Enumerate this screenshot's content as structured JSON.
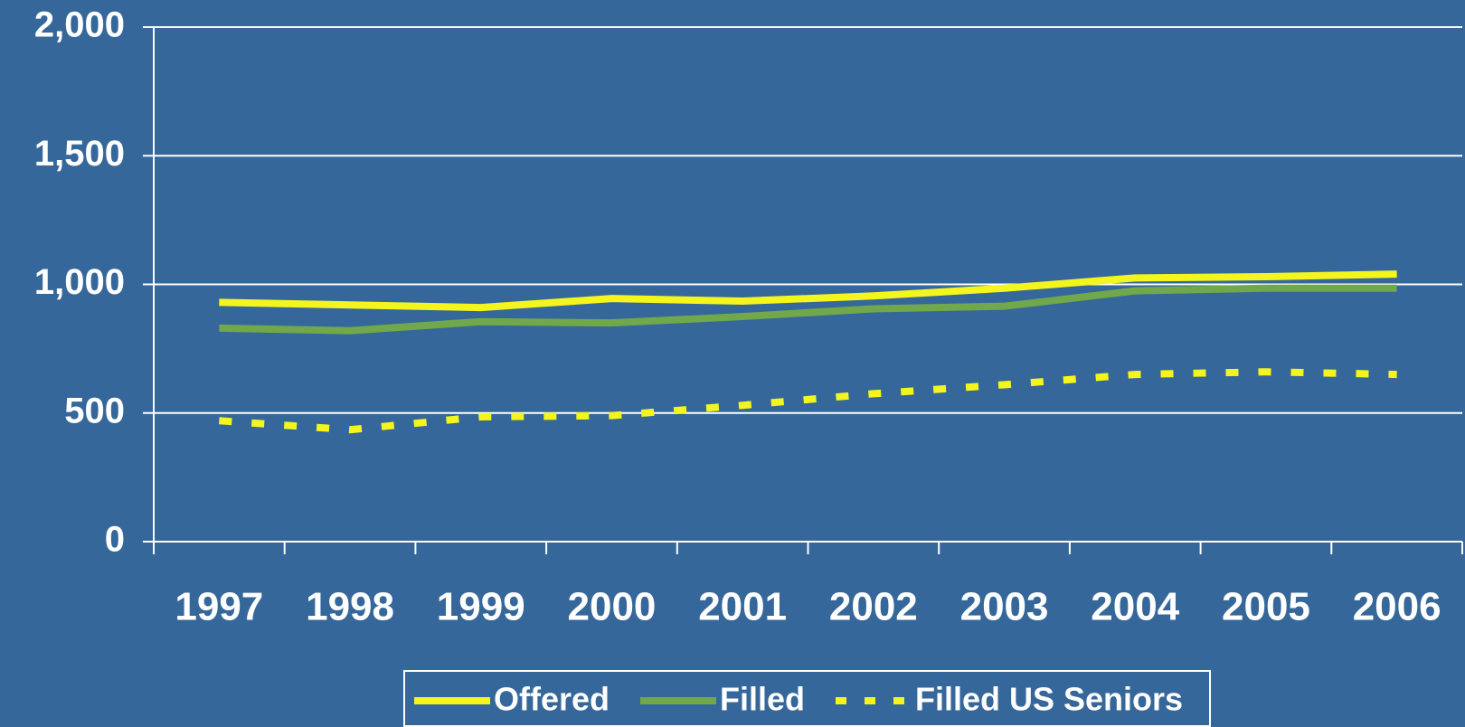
{
  "chart_data": {
    "type": "line",
    "categories": [
      "1997",
      "1998",
      "1999",
      "2000",
      "2001",
      "2002",
      "2003",
      "2004",
      "2005",
      "2006"
    ],
    "series": [
      {
        "name": "Offered",
        "color": "#f5f51e",
        "dash": "solid",
        "values": [
          930,
          920,
          910,
          945,
          935,
          955,
          985,
          1025,
          1030,
          1040
        ]
      },
      {
        "name": "Filled",
        "color": "#70a84b",
        "dash": "solid",
        "values": [
          830,
          820,
          855,
          850,
          875,
          905,
          915,
          975,
          985,
          985
        ]
      },
      {
        "name": "Filled US Seniors",
        "color": "#f5f51e",
        "dash": "dashed",
        "values": [
          470,
          435,
          485,
          490,
          530,
          575,
          610,
          650,
          660,
          650
        ]
      }
    ],
    "ylim": [
      0,
      2000
    ],
    "yticks": [
      0,
      500,
      {
        "value": 1000,
        "label": "1,000"
      },
      {
        "value": 1500,
        "label": "1,500"
      },
      {
        "value": 2000,
        "label": "2,000"
      }
    ],
    "grid": true,
    "legend": "bottom"
  }
}
